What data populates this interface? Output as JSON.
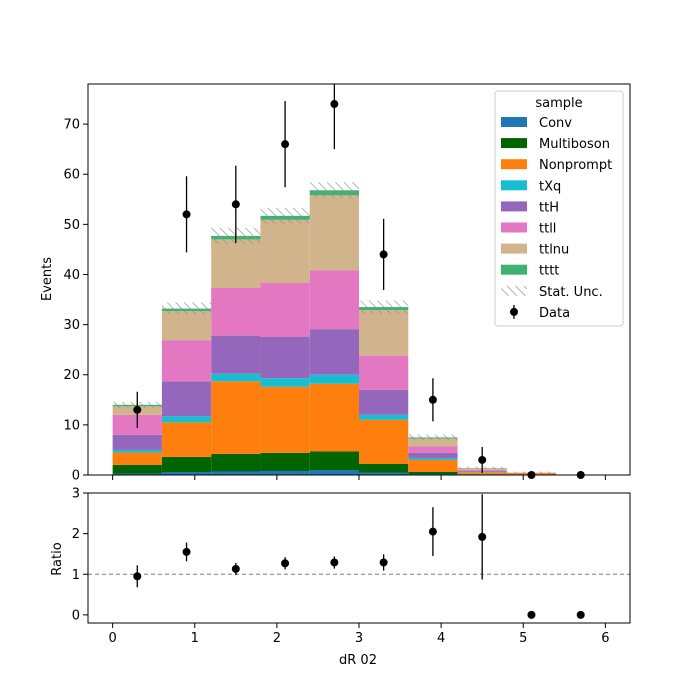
{
  "chart_data": {
    "type": "bar",
    "stacked": true,
    "xlabel": "dR 02",
    "ylabel_main": "Events",
    "ylabel_ratio": "Ratio",
    "xlim": [
      -0.3,
      6.3
    ],
    "ylim_main": [
      0,
      78
    ],
    "ylim_ratio": [
      -0.2,
      3
    ],
    "x_ticks": [
      0,
      1,
      2,
      3,
      4,
      5,
      6
    ],
    "y_ticks_main": [
      0,
      10,
      20,
      30,
      40,
      50,
      60,
      70
    ],
    "y_ticks_ratio": [
      0,
      1,
      2,
      3
    ],
    "ratio_reference": 1,
    "bin_edges": [
      0,
      0.6,
      1.2,
      1.8,
      2.4,
      3.0,
      3.6,
      4.2,
      4.8,
      5.4,
      6.0
    ],
    "legend_title": "sample",
    "legend_position": "top-right",
    "series": [
      {
        "name": "Conv",
        "color": "#1f77b4",
        "values": [
          0.3,
          0.6,
          0.7,
          0.8,
          1.0,
          0.5,
          0.2,
          0.05,
          0,
          0
        ]
      },
      {
        "name": "Multiboson",
        "color": "#006400",
        "values": [
          1.7,
          3.0,
          3.5,
          3.6,
          3.7,
          1.7,
          0.4,
          0.1,
          0.05,
          0
        ]
      },
      {
        "name": "Nonprompt",
        "color": "#ff7f0e",
        "values": [
          2.5,
          6.9,
          14.5,
          13.2,
          13.5,
          8.8,
          2.4,
          0.4,
          0.3,
          0
        ]
      },
      {
        "name": "tXq",
        "color": "#17becf",
        "values": [
          0.5,
          1.2,
          1.5,
          1.7,
          1.8,
          1.0,
          0.4,
          0.1,
          0,
          0
        ]
      },
      {
        "name": "ttH",
        "color": "#9467bd",
        "values": [
          3.0,
          7.0,
          7.6,
          8.3,
          9.1,
          5.0,
          1.0,
          0.2,
          0.05,
          0
        ]
      },
      {
        "name": "ttll",
        "color": "#e377c2",
        "values": [
          4.0,
          8.2,
          9.5,
          10.7,
          11.7,
          6.8,
          1.3,
          0.2,
          0.05,
          0
        ]
      },
      {
        "name": "ttlnu",
        "color": "#d2b48c",
        "values": [
          1.7,
          5.8,
          9.7,
          12.6,
          15.0,
          9.1,
          1.6,
          0.3,
          0.05,
          0
        ]
      },
      {
        "name": "tttt",
        "color": "#3cb371",
        "values": [
          0.3,
          0.5,
          0.7,
          0.8,
          1.0,
          0.6,
          0.2,
          0.05,
          0,
          0
        ]
      }
    ],
    "stat_unc": {
      "name": "Stat. Unc.",
      "values": [
        0.6,
        1.2,
        1.6,
        1.6,
        1.6,
        1.3,
        0.6,
        0.25,
        0.2,
        0.05
      ]
    },
    "data": {
      "name": "Data",
      "x": [
        0.3,
        0.9,
        1.5,
        2.1,
        2.7,
        3.3,
        3.9,
        4.5,
        5.1,
        5.7
      ],
      "y": [
        13,
        52,
        54,
        66,
        74,
        44,
        15,
        3,
        0,
        0
      ],
      "err": [
        3.6,
        7.6,
        7.7,
        8.6,
        9.0,
        7.1,
        4.3,
        2.6,
        0,
        0
      ]
    },
    "ratio": {
      "x": [
        0.3,
        0.9,
        1.5,
        2.1,
        2.7,
        3.3,
        3.9,
        4.5,
        5.1,
        5.7
      ],
      "y": [
        0.95,
        1.55,
        1.13,
        1.27,
        1.29,
        1.29,
        2.05,
        1.92,
        0,
        0
      ],
      "err": [
        0.27,
        0.23,
        0.15,
        0.15,
        0.15,
        0.2,
        0.6,
        1.05,
        0,
        0
      ]
    }
  }
}
